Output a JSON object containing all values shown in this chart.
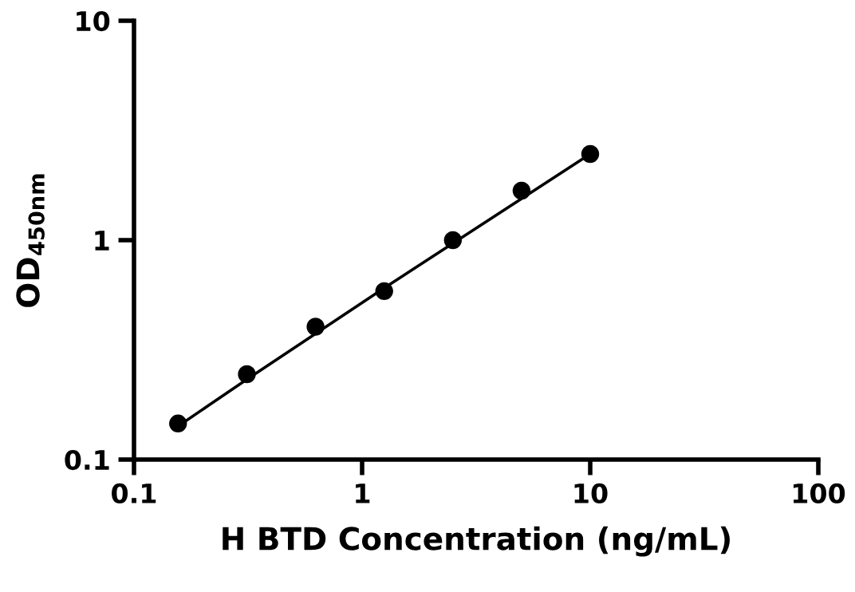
{
  "chart_data": {
    "type": "scatter",
    "xlabel": "H BTD Concentration (ng/mL)",
    "ylabel": "OD$_{450nm}$",
    "log": "xy",
    "xlim": [
      0.1,
      100
    ],
    "ylim": [
      0.1,
      10
    ],
    "xticks": [
      0.1,
      1,
      10,
      100
    ],
    "yticks": [
      0.1,
      1,
      10
    ],
    "grid": false,
    "legend": false,
    "series": [
      {
        "color": "#000000",
        "marker": "circle",
        "x": [
          0.156,
          0.3125,
          0.625,
          1.25,
          2.5,
          5,
          10
        ],
        "values": [
          0.146,
          0.245,
          0.403,
          0.586,
          1.0,
          1.68,
          2.47
        ]
      },
      {
        "type": "line",
        "color": "#000000",
        "marker": "none",
        "line_style": "solid",
        "x": [
          0.156,
          0.3125,
          1.25,
          10
        ],
        "values": [
          0.142,
          0.232,
          0.605,
          2.47
        ]
      }
    ]
  }
}
